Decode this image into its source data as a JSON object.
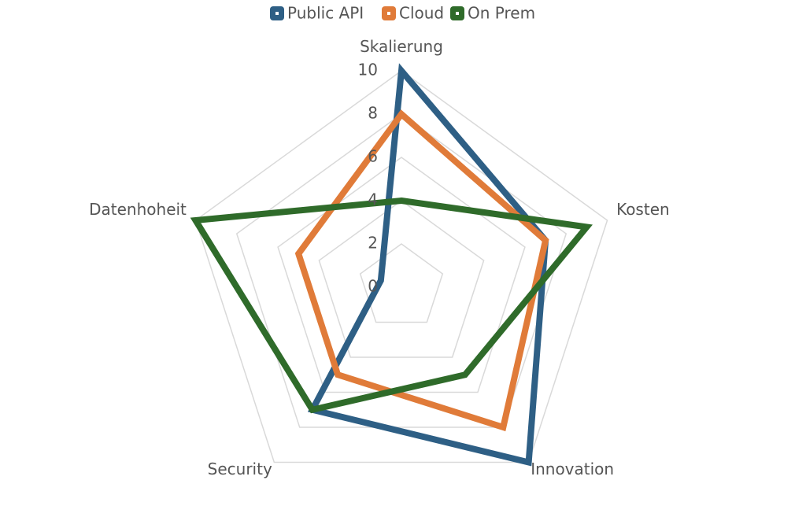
{
  "chart_data": {
    "type": "radar",
    "categories": [
      "Skalierung",
      "Kosten",
      "Innovation",
      "Security",
      "Datenhoheit"
    ],
    "series": [
      {
        "name": "Public API",
        "color": "#2e5f85",
        "values": [
          10,
          7,
          10,
          7,
          1
        ]
      },
      {
        "name": "Cloud",
        "color": "#e07b39",
        "values": [
          8,
          7,
          8,
          5,
          5
        ]
      },
      {
        "name": "On Prem",
        "color": "#2f6b2a",
        "values": [
          4,
          9,
          5,
          7,
          10
        ]
      }
    ],
    "ylim": [
      0,
      10
    ],
    "yticks": [
      0,
      2,
      4,
      6,
      8,
      10
    ],
    "grid": true,
    "legend": "top"
  }
}
